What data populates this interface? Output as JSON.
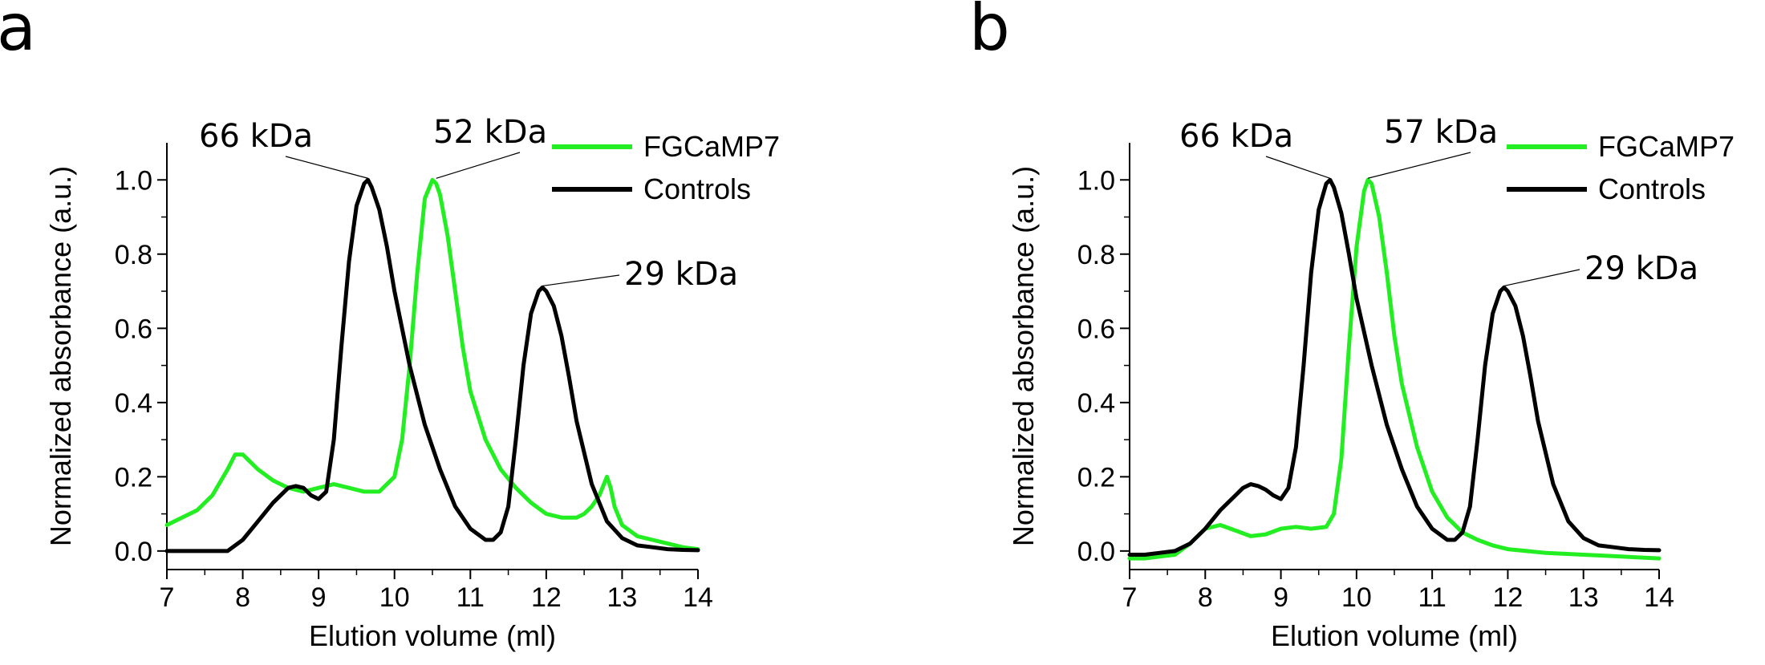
{
  "chart_data": [
    {
      "type": "line",
      "panel_label": "a",
      "xlabel": "Elution volume (ml)",
      "ylabel": "Normalized absorbance (a.u.)",
      "xlim": [
        7,
        14
      ],
      "ylim": [
        -0.05,
        1.1
      ],
      "xticks": [
        7,
        8,
        9,
        10,
        11,
        12,
        13,
        14
      ],
      "yticks": [
        "0.0",
        "0.2",
        "0.4",
        "0.6",
        "0.8",
        "1.0"
      ],
      "legend_position": "top-right",
      "series": [
        {
          "name": "FGCaMP7",
          "color": "#22ee22",
          "x": [
            7.0,
            7.2,
            7.4,
            7.6,
            7.8,
            7.9,
            8.0,
            8.1,
            8.2,
            8.4,
            8.6,
            8.8,
            9.0,
            9.2,
            9.4,
            9.6,
            9.8,
            10.0,
            10.1,
            10.2,
            10.3,
            10.4,
            10.5,
            10.55,
            10.6,
            10.7,
            10.8,
            10.9,
            11.0,
            11.2,
            11.4,
            11.6,
            11.8,
            12.0,
            12.2,
            12.4,
            12.5,
            12.6,
            12.7,
            12.8,
            12.85,
            12.9,
            13.0,
            13.2,
            13.4,
            13.6,
            13.8,
            14.0
          ],
          "y": [
            0.07,
            0.09,
            0.11,
            0.15,
            0.22,
            0.26,
            0.26,
            0.24,
            0.22,
            0.19,
            0.17,
            0.16,
            0.17,
            0.18,
            0.17,
            0.16,
            0.16,
            0.2,
            0.3,
            0.5,
            0.75,
            0.95,
            1.0,
            0.99,
            0.96,
            0.85,
            0.7,
            0.55,
            0.43,
            0.3,
            0.22,
            0.17,
            0.13,
            0.1,
            0.09,
            0.09,
            0.1,
            0.12,
            0.15,
            0.2,
            0.17,
            0.12,
            0.07,
            0.04,
            0.03,
            0.02,
            0.01,
            0.005
          ]
        },
        {
          "name": "Controls",
          "color": "#000000",
          "x": [
            7.0,
            7.2,
            7.4,
            7.6,
            7.8,
            8.0,
            8.2,
            8.4,
            8.6,
            8.7,
            8.8,
            8.9,
            9.0,
            9.1,
            9.2,
            9.3,
            9.4,
            9.5,
            9.6,
            9.65,
            9.7,
            9.8,
            9.9,
            10.0,
            10.2,
            10.4,
            10.6,
            10.8,
            11.0,
            11.2,
            11.3,
            11.4,
            11.5,
            11.6,
            11.7,
            11.8,
            11.9,
            11.95,
            12.0,
            12.1,
            12.2,
            12.3,
            12.4,
            12.6,
            12.8,
            13.0,
            13.2,
            13.4,
            13.6,
            13.8,
            14.0
          ],
          "y": [
            0.0,
            0.0,
            0.0,
            0.0,
            0.0,
            0.03,
            0.08,
            0.13,
            0.17,
            0.175,
            0.17,
            0.15,
            0.14,
            0.16,
            0.3,
            0.55,
            0.78,
            0.93,
            0.99,
            1.0,
            0.98,
            0.92,
            0.82,
            0.7,
            0.5,
            0.34,
            0.22,
            0.12,
            0.06,
            0.03,
            0.03,
            0.05,
            0.12,
            0.3,
            0.5,
            0.64,
            0.7,
            0.71,
            0.7,
            0.66,
            0.58,
            0.47,
            0.35,
            0.18,
            0.08,
            0.035,
            0.015,
            0.01,
            0.005,
            0.003,
            0.002
          ]
        }
      ],
      "annotations": [
        {
          "text": "66 kDa",
          "x": 9.65,
          "y": 1.0
        },
        {
          "text": "52 kDa",
          "x": 10.55,
          "y": 1.0
        },
        {
          "text": "29 kDa",
          "x": 11.95,
          "y": 0.71
        }
      ]
    },
    {
      "type": "line",
      "panel_label": "b",
      "xlabel": "Elution volume (ml)",
      "ylabel": "Normalized absorbance (a.u.)",
      "xlim": [
        7,
        14
      ],
      "ylim": [
        -0.05,
        1.1
      ],
      "xticks": [
        7,
        8,
        9,
        10,
        11,
        12,
        13,
        14
      ],
      "yticks": [
        "0.0",
        "0.2",
        "0.4",
        "0.6",
        "0.8",
        "1.0"
      ],
      "legend_position": "top-right",
      "series": [
        {
          "name": "FGCaMP7",
          "color": "#22ee22",
          "x": [
            7.0,
            7.2,
            7.4,
            7.6,
            7.8,
            8.0,
            8.2,
            8.4,
            8.6,
            8.8,
            9.0,
            9.2,
            9.4,
            9.6,
            9.7,
            9.8,
            9.9,
            10.0,
            10.1,
            10.15,
            10.2,
            10.3,
            10.4,
            10.5,
            10.6,
            10.8,
            11.0,
            11.2,
            11.4,
            11.6,
            11.8,
            12.0,
            12.5,
            13.0,
            13.5,
            14.0
          ],
          "y": [
            -0.02,
            -0.02,
            -0.015,
            -0.01,
            0.02,
            0.06,
            0.07,
            0.055,
            0.04,
            0.045,
            0.06,
            0.065,
            0.06,
            0.065,
            0.1,
            0.25,
            0.55,
            0.82,
            0.97,
            1.0,
            0.99,
            0.9,
            0.75,
            0.58,
            0.45,
            0.28,
            0.16,
            0.09,
            0.05,
            0.03,
            0.015,
            0.005,
            -0.005,
            -0.01,
            -0.015,
            -0.02
          ]
        },
        {
          "name": "Controls",
          "color": "#000000",
          "x": [
            7.0,
            7.2,
            7.4,
            7.6,
            7.8,
            8.0,
            8.2,
            8.4,
            8.5,
            8.6,
            8.7,
            8.8,
            8.9,
            9.0,
            9.1,
            9.2,
            9.3,
            9.4,
            9.5,
            9.6,
            9.65,
            9.7,
            9.8,
            9.9,
            10.0,
            10.2,
            10.4,
            10.6,
            10.8,
            11.0,
            11.2,
            11.3,
            11.4,
            11.5,
            11.6,
            11.7,
            11.8,
            11.9,
            11.95,
            12.0,
            12.1,
            12.2,
            12.3,
            12.4,
            12.6,
            12.8,
            13.0,
            13.2,
            13.4,
            13.6,
            13.8,
            14.0
          ],
          "y": [
            -0.01,
            -0.01,
            -0.005,
            0.0,
            0.02,
            0.06,
            0.11,
            0.15,
            0.17,
            0.18,
            0.175,
            0.165,
            0.15,
            0.14,
            0.17,
            0.28,
            0.5,
            0.75,
            0.92,
            0.99,
            1.0,
            0.98,
            0.91,
            0.8,
            0.68,
            0.5,
            0.34,
            0.22,
            0.12,
            0.06,
            0.03,
            0.03,
            0.05,
            0.12,
            0.3,
            0.5,
            0.64,
            0.7,
            0.71,
            0.7,
            0.66,
            0.58,
            0.47,
            0.35,
            0.18,
            0.08,
            0.035,
            0.015,
            0.01,
            0.005,
            0.003,
            0.002
          ]
        }
      ],
      "annotations": [
        {
          "text": "66 kDa",
          "x": 9.65,
          "y": 1.0
        },
        {
          "text": "57 kDa",
          "x": 10.15,
          "y": 1.0
        },
        {
          "text": "29 kDa",
          "x": 11.95,
          "y": 0.71
        }
      ]
    }
  ]
}
